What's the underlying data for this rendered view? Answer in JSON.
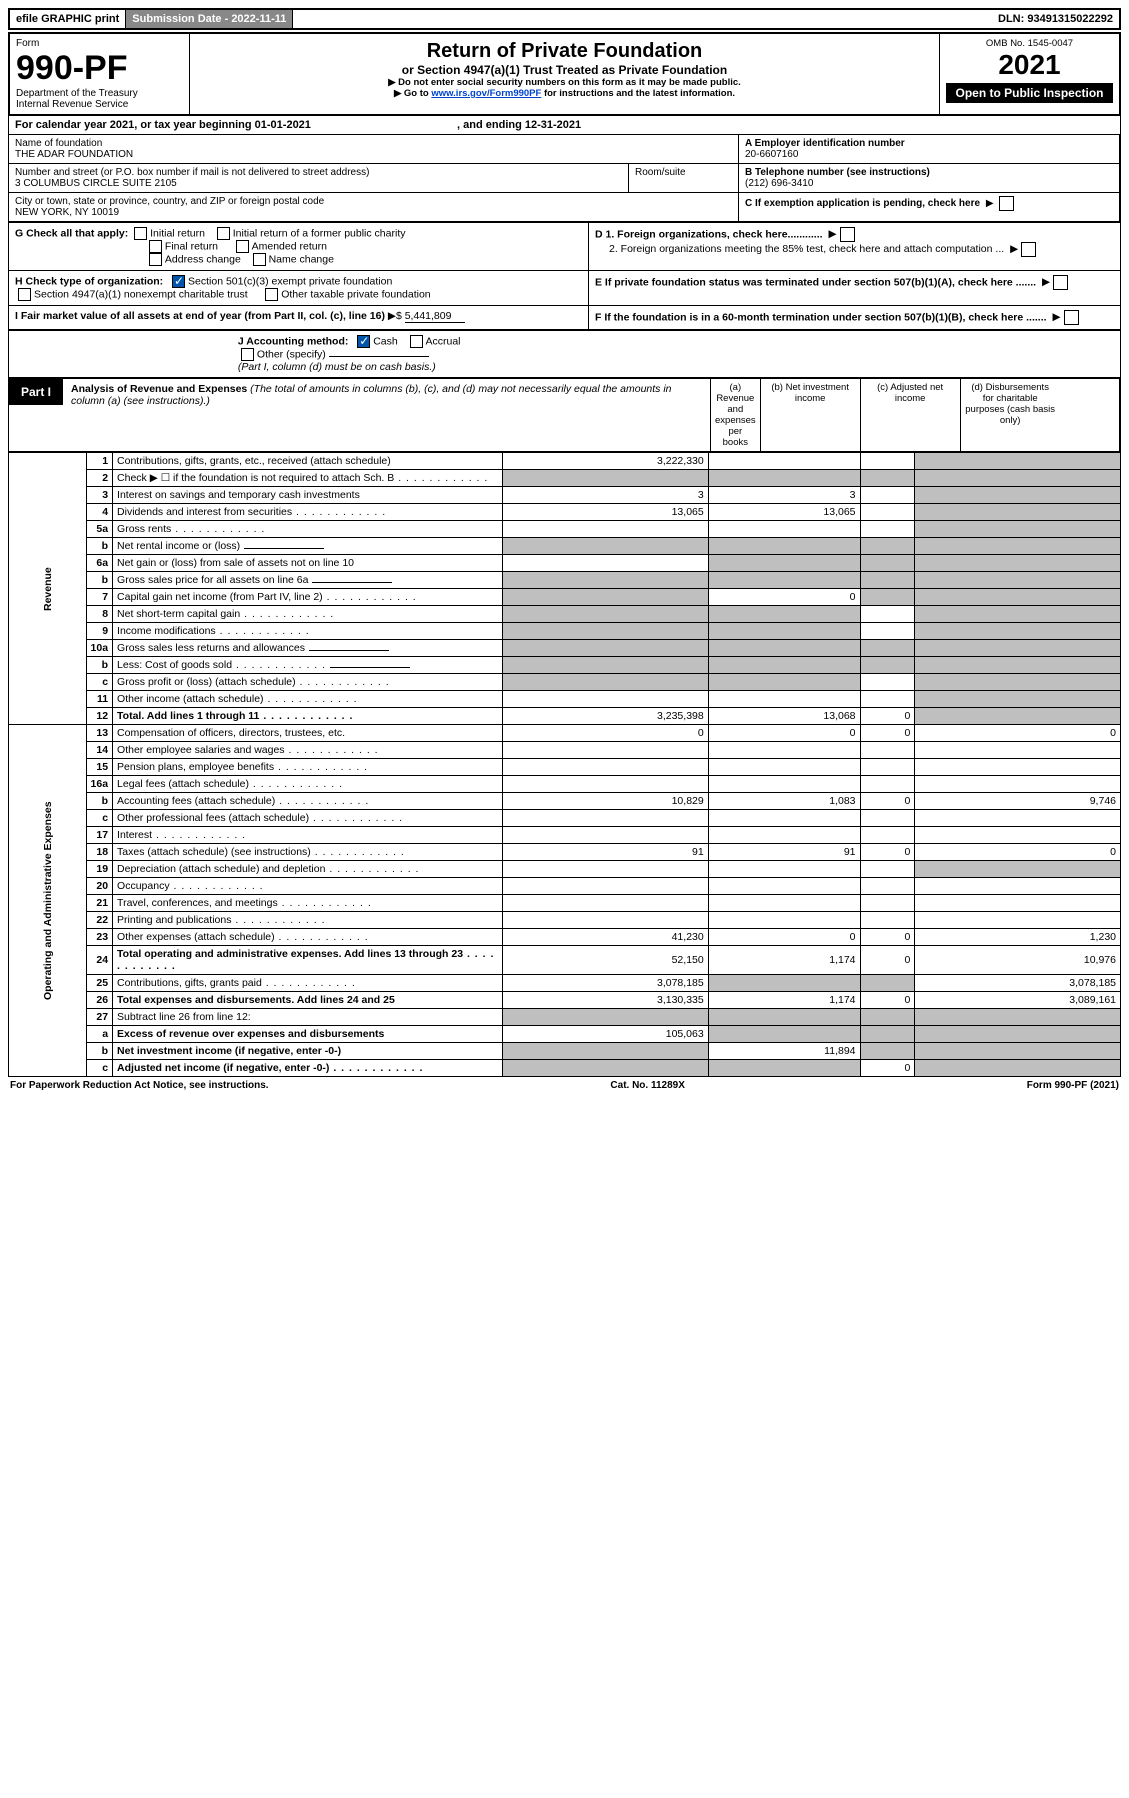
{
  "colors": {
    "text": "#000000",
    "bg": "#ffffff",
    "shade": "#bfbfbf",
    "link": "#0044cc",
    "inverse_bg": "#000000",
    "inverse_fg": "#ffffff",
    "check_fill": "#0055aa",
    "topbar_sub_bg": "#888888"
  },
  "topbar": {
    "efile": "efile GRAPHIC print",
    "submission_label": "Submission Date - 2022-11-11",
    "dln": "DLN: 93491315022292"
  },
  "header": {
    "form_label": "Form",
    "form_number": "990-PF",
    "dept1": "Department of the Treasury",
    "dept2": "Internal Revenue Service",
    "title": "Return of Private Foundation",
    "subtitle": "or Section 4947(a)(1) Trust Treated as Private Foundation",
    "note1": "▶ Do not enter social security numbers on this form as it may be made public.",
    "note2_prefix": "▶ Go to ",
    "note2_link": "www.irs.gov/Form990PF",
    "note2_suffix": " for instructions and the latest information.",
    "omb": "OMB No. 1545-0047",
    "year": "2021",
    "inspect": "Open to Public Inspection"
  },
  "period": {
    "line": "For calendar year 2021, or tax year beginning 01-01-2021",
    "ending": ", and ending 12-31-2021"
  },
  "identity": {
    "name_label": "Name of foundation",
    "name": "THE ADAR FOUNDATION",
    "addr_label": "Number and street (or P.O. box number if mail is not delivered to street address)",
    "addr": "3 COLUMBUS CIRCLE SUITE 2105",
    "room_label": "Room/suite",
    "city_label": "City or town, state or province, country, and ZIP or foreign postal code",
    "city": "NEW YORK, NY  10019",
    "ein_label": "A Employer identification number",
    "ein": "20-6607160",
    "tel_label": "B Telephone number (see instructions)",
    "tel": "(212) 696-3410",
    "c_label": "C If exemption application is pending, check here",
    "d1": "D 1. Foreign organizations, check here............",
    "d2": "2. Foreign organizations meeting the 85% test, check here and attach computation ...",
    "e": "E  If private foundation status was terminated under section 507(b)(1)(A), check here .......",
    "f": "F  If the foundation is in a 60-month termination under section 507(b)(1)(B), check here .......",
    "g_label": "G Check all that apply:",
    "g_opts": [
      "Initial return",
      "Initial return of a former public charity",
      "Final return",
      "Amended return",
      "Address change",
      "Name change"
    ],
    "h_label": "H Check type of organization:",
    "h_opt1": "Section 501(c)(3) exempt private foundation",
    "h_opt2": "Section 4947(a)(1) nonexempt charitable trust",
    "h_opt3": "Other taxable private foundation",
    "i_label": "I Fair market value of all assets at end of year (from Part II, col. (c), line 16)",
    "i_val": "5,441,809",
    "j_label": "J Accounting method:",
    "j_cash": "Cash",
    "j_accrual": "Accrual",
    "j_other": "Other (specify)",
    "j_note": "(Part I, column (d) must be on cash basis.)"
  },
  "part1": {
    "label": "Part I",
    "heading": "Analysis of Revenue and Expenses",
    "heading_note": " (The total of amounts in columns (b), (c), and (d) may not necessarily equal the amounts in column (a) (see instructions).)",
    "cols": {
      "a": "(a)  Revenue and expenses per books",
      "b": "(b)  Net investment income",
      "c": "(c)  Adjusted net income",
      "d": "(d)  Disbursements for charitable purposes (cash basis only)"
    }
  },
  "side_labels": {
    "revenue": "Revenue",
    "opex": "Operating and Administrative Expenses"
  },
  "rows": [
    {
      "n": "1",
      "t": "Contributions, gifts, grants, etc., received (attach schedule)",
      "a": "3,222,330",
      "b": "",
      "c": "",
      "d": "s"
    },
    {
      "n": "2",
      "t": "Check ▶ ☐ if the foundation is not required to attach Sch. B",
      "dots": true,
      "a": "s",
      "b": "s",
      "c": "s",
      "d": "s"
    },
    {
      "n": "3",
      "t": "Interest on savings and temporary cash investments",
      "a": "3",
      "b": "3",
      "c": "",
      "d": "s"
    },
    {
      "n": "4",
      "t": "Dividends and interest from securities",
      "dots": true,
      "a": "13,065",
      "b": "13,065",
      "c": "",
      "d": "s"
    },
    {
      "n": "5a",
      "t": "Gross rents",
      "dots": true,
      "a": "",
      "b": "",
      "c": "",
      "d": "s"
    },
    {
      "n": "b",
      "t": "Net rental income or (loss)",
      "ul": true,
      "a": "s",
      "b": "s",
      "c": "s",
      "d": "s"
    },
    {
      "n": "6a",
      "t": "Net gain or (loss) from sale of assets not on line 10",
      "a": "",
      "b": "s",
      "c": "s",
      "d": "s"
    },
    {
      "n": "b",
      "t": "Gross sales price for all assets on line 6a",
      "ul": true,
      "a": "s",
      "b": "s",
      "c": "s",
      "d": "s"
    },
    {
      "n": "7",
      "t": "Capital gain net income (from Part IV, line 2)",
      "dots": true,
      "a": "s",
      "b": "0",
      "c": "s",
      "d": "s"
    },
    {
      "n": "8",
      "t": "Net short-term capital gain",
      "dots": true,
      "a": "s",
      "b": "s",
      "c": "",
      "d": "s"
    },
    {
      "n": "9",
      "t": "Income modifications",
      "dots": true,
      "a": "s",
      "b": "s",
      "c": "",
      "d": "s"
    },
    {
      "n": "10a",
      "t": "Gross sales less returns and allowances",
      "ul": true,
      "a": "s",
      "b": "s",
      "c": "s",
      "d": "s"
    },
    {
      "n": "b",
      "t": "Less: Cost of goods sold",
      "dots": true,
      "ul": true,
      "a": "s",
      "b": "s",
      "c": "s",
      "d": "s"
    },
    {
      "n": "c",
      "t": "Gross profit or (loss) (attach schedule)",
      "dots": true,
      "a": "s",
      "b": "s",
      "c": "",
      "d": "s"
    },
    {
      "n": "11",
      "t": "Other income (attach schedule)",
      "dots": true,
      "a": "",
      "b": "",
      "c": "",
      "d": "s"
    },
    {
      "n": "12",
      "t": "Total. Add lines 1 through 11",
      "dots": true,
      "bold": true,
      "a": "3,235,398",
      "b": "13,068",
      "c": "0",
      "d": "s"
    },
    {
      "n": "13",
      "t": "Compensation of officers, directors, trustees, etc.",
      "a": "0",
      "b": "0",
      "c": "0",
      "d": "0"
    },
    {
      "n": "14",
      "t": "Other employee salaries and wages",
      "dots": true,
      "a": "",
      "b": "",
      "c": "",
      "d": ""
    },
    {
      "n": "15",
      "t": "Pension plans, employee benefits",
      "dots": true,
      "a": "",
      "b": "",
      "c": "",
      "d": ""
    },
    {
      "n": "16a",
      "t": "Legal fees (attach schedule)",
      "dots": true,
      "a": "",
      "b": "",
      "c": "",
      "d": ""
    },
    {
      "n": "b",
      "t": "Accounting fees (attach schedule)",
      "dots": true,
      "a": "10,829",
      "b": "1,083",
      "c": "0",
      "d": "9,746"
    },
    {
      "n": "c",
      "t": "Other professional fees (attach schedule)",
      "dots": true,
      "a": "",
      "b": "",
      "c": "",
      "d": ""
    },
    {
      "n": "17",
      "t": "Interest",
      "dots": true,
      "a": "",
      "b": "",
      "c": "",
      "d": ""
    },
    {
      "n": "18",
      "t": "Taxes (attach schedule) (see instructions)",
      "dots": true,
      "a": "91",
      "b": "91",
      "c": "0",
      "d": "0"
    },
    {
      "n": "19",
      "t": "Depreciation (attach schedule) and depletion",
      "dots": true,
      "a": "",
      "b": "",
      "c": "",
      "d": "s"
    },
    {
      "n": "20",
      "t": "Occupancy",
      "dots": true,
      "a": "",
      "b": "",
      "c": "",
      "d": ""
    },
    {
      "n": "21",
      "t": "Travel, conferences, and meetings",
      "dots": true,
      "a": "",
      "b": "",
      "c": "",
      "d": ""
    },
    {
      "n": "22",
      "t": "Printing and publications",
      "dots": true,
      "a": "",
      "b": "",
      "c": "",
      "d": ""
    },
    {
      "n": "23",
      "t": "Other expenses (attach schedule)",
      "dots": true,
      "a": "41,230",
      "b": "0",
      "c": "0",
      "d": "1,230"
    },
    {
      "n": "24",
      "t": "Total operating and administrative expenses. Add lines 13 through 23",
      "dots": true,
      "bold": true,
      "a": "52,150",
      "b": "1,174",
      "c": "0",
      "d": "10,976"
    },
    {
      "n": "25",
      "t": "Contributions, gifts, grants paid",
      "dots": true,
      "a": "3,078,185",
      "b": "s",
      "c": "s",
      "d": "3,078,185"
    },
    {
      "n": "26",
      "t": "Total expenses and disbursements. Add lines 24 and 25",
      "bold": true,
      "a": "3,130,335",
      "b": "1,174",
      "c": "0",
      "d": "3,089,161"
    },
    {
      "n": "27",
      "t": "Subtract line 26 from line 12:",
      "a": "s",
      "b": "s",
      "c": "s",
      "d": "s"
    },
    {
      "n": "a",
      "t": "Excess of revenue over expenses and disbursements",
      "bold": true,
      "a": "105,063",
      "b": "s",
      "c": "s",
      "d": "s"
    },
    {
      "n": "b",
      "t": "Net investment income (if negative, enter -0-)",
      "bold": true,
      "a": "s",
      "b": "11,894",
      "c": "s",
      "d": "s"
    },
    {
      "n": "c",
      "t": "Adjusted net income (if negative, enter -0-)",
      "bold": true,
      "dots": true,
      "a": "s",
      "b": "s",
      "c": "0",
      "d": "s"
    }
  ],
  "footer": {
    "left": "For Paperwork Reduction Act Notice, see instructions.",
    "mid": "Cat. No. 11289X",
    "right": "Form 990-PF (2021)"
  }
}
